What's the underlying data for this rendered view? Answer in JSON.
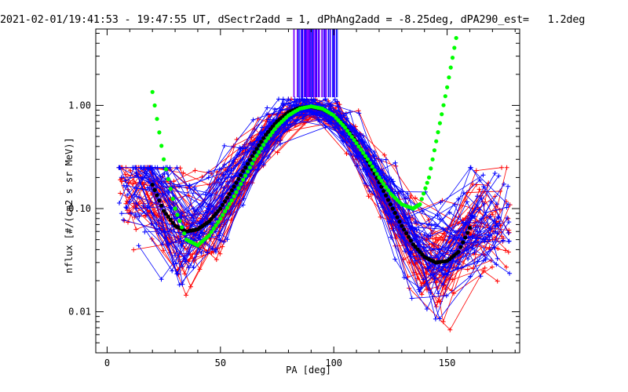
{
  "chart_data": {
    "type": "line",
    "title": "2021-02-01/19:41:53 - 19:47:55 UT, dSectr2add = 1, dPhAng2add = -8.25deg, dPA290_est=   1.2deg",
    "xlabel": "PA [deg]",
    "ylabel": "nflux [#/(cm2 s sr MeV)]",
    "xlim": [
      -5,
      182
    ],
    "ylim": [
      0.004,
      5.5
    ],
    "yscale": "log",
    "xticks": [
      0,
      50,
      100,
      150
    ],
    "xtick_labels": [
      "0",
      "50",
      "100",
      "150"
    ],
    "yticks": [
      0.01,
      0.1,
      1.0
    ],
    "ytick_labels": [
      "0.01",
      "0.10",
      "1.00"
    ],
    "grid": false,
    "legend": "none",
    "colors": {
      "blue": "#0000ff",
      "red": "#ff0000",
      "black": "#000000",
      "green": "#00ff00",
      "vlines": "#7a00ff"
    },
    "series": [
      {
        "color": "black",
        "style": "dots",
        "x": [
          20,
          25,
          30,
          35,
          40,
          45,
          50,
          55,
          60,
          65,
          70,
          75,
          80,
          85,
          90,
          95,
          100,
          105,
          110,
          115,
          120,
          125,
          130,
          135,
          140,
          145,
          150,
          155,
          160
        ],
        "y": [
          0.17,
          0.095,
          0.068,
          0.06,
          0.063,
          0.075,
          0.1,
          0.15,
          0.23,
          0.35,
          0.52,
          0.7,
          0.86,
          0.95,
          0.97,
          0.92,
          0.8,
          0.62,
          0.44,
          0.29,
          0.18,
          0.11,
          0.068,
          0.045,
          0.034,
          0.03,
          0.031,
          0.038,
          0.065
        ]
      },
      {
        "color": "green",
        "style": "dots",
        "x": [
          20,
          25,
          30,
          35,
          40,
          45,
          50,
          55,
          60,
          65,
          70,
          75,
          80,
          85,
          90,
          95,
          100,
          105,
          110,
          115,
          120,
          125,
          130,
          135,
          138,
          142,
          146,
          150,
          154
        ],
        "y": [
          1.35,
          0.3,
          0.1,
          0.05,
          0.044,
          0.055,
          0.08,
          0.12,
          0.19,
          0.3,
          0.45,
          0.63,
          0.8,
          0.93,
          0.98,
          0.93,
          0.8,
          0.61,
          0.43,
          0.3,
          0.2,
          0.14,
          0.11,
          0.1,
          0.11,
          0.2,
          0.55,
          1.5,
          4.5
        ]
      }
    ],
    "vertical_lines": {
      "color": "vlines",
      "x_range": [
        82,
        102
      ],
      "y_range": [
        1.2,
        5.5
      ]
    },
    "scatter_clouds": [
      {
        "color": "blue",
        "marker": "+",
        "description_free": true
      },
      {
        "color": "red",
        "marker": "+",
        "description_free": true
      }
    ]
  }
}
